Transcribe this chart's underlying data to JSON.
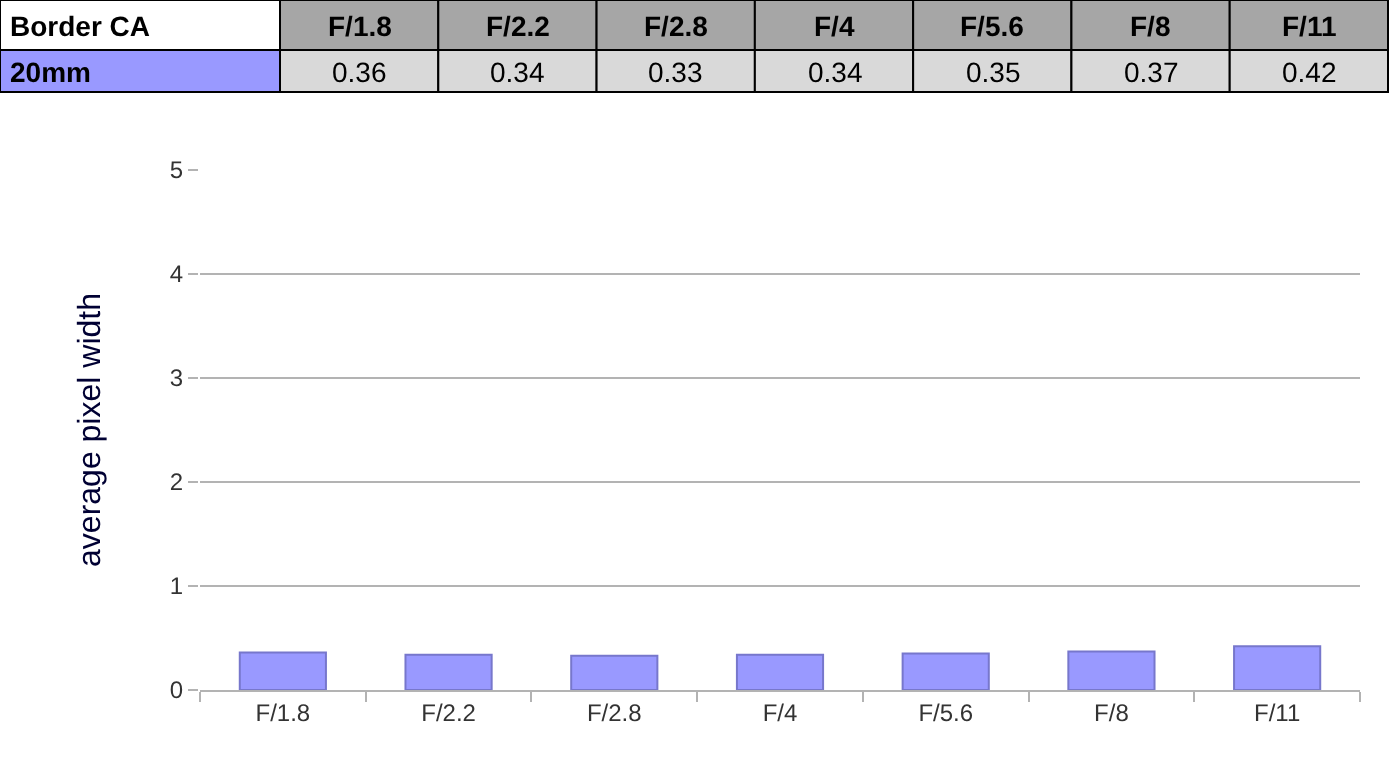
{
  "chart_data": {
    "type": "bar",
    "title": "Border CA",
    "ylabel": "average pixel width",
    "categories": [
      "F/1.8",
      "F/2.2",
      "F/2.8",
      "F/4",
      "F/5.6",
      "F/8",
      "F/11"
    ],
    "series": [
      {
        "name": "20mm",
        "color": "#9999ff",
        "values": [
          0.36,
          0.34,
          0.33,
          0.34,
          0.35,
          0.37,
          0.42
        ]
      }
    ],
    "ylim": [
      0,
      5
    ],
    "yticks": [
      0,
      1,
      2,
      3,
      4,
      5
    ],
    "grid": "y",
    "data_labels": true,
    "legend": false
  }
}
